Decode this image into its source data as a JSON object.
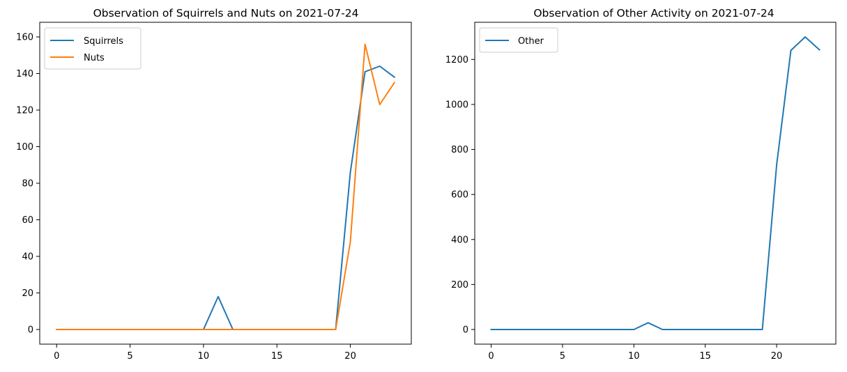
{
  "chart_data": [
    {
      "type": "line",
      "title": "Observation of Squirrels and Nuts on 2021-07-24",
      "xlabel": "",
      "ylabel": "",
      "xlim": [
        -1.15,
        24.15
      ],
      "ylim": [
        -8,
        168
      ],
      "xticks": [
        0,
        5,
        10,
        15,
        20
      ],
      "yticks": [
        0,
        20,
        40,
        60,
        80,
        100,
        120,
        140,
        160
      ],
      "grid": false,
      "legend_position": "upper-left",
      "x": [
        0,
        1,
        2,
        3,
        4,
        5,
        6,
        7,
        8,
        9,
        10,
        11,
        12,
        13,
        14,
        15,
        16,
        17,
        18,
        19,
        20,
        21,
        22,
        23
      ],
      "series": [
        {
          "name": "Squirrels",
          "color": "#1f77b4",
          "values": [
            0,
            0,
            0,
            0,
            0,
            0,
            0,
            0,
            0,
            0,
            0,
            18,
            0,
            0,
            0,
            0,
            0,
            0,
            0,
            0,
            86,
            141,
            144,
            138
          ]
        },
        {
          "name": "Nuts",
          "color": "#ff7f0e",
          "values": [
            0,
            0,
            0,
            0,
            0,
            0,
            0,
            0,
            0,
            0,
            0,
            0,
            0,
            0,
            0,
            0,
            0,
            0,
            0,
            0,
            48,
            156,
            123,
            135
          ]
        }
      ]
    },
    {
      "type": "line",
      "title": "Observation of Other Activity on 2021-07-24",
      "xlabel": "",
      "ylabel": "",
      "xlim": [
        -1.15,
        24.15
      ],
      "ylim": [
        -65,
        1365
      ],
      "xticks": [
        0,
        5,
        10,
        15,
        20
      ],
      "yticks": [
        0,
        200,
        400,
        600,
        800,
        1000,
        1200
      ],
      "grid": false,
      "legend_position": "upper-left",
      "x": [
        0,
        1,
        2,
        3,
        4,
        5,
        6,
        7,
        8,
        9,
        10,
        11,
        12,
        13,
        14,
        15,
        16,
        17,
        18,
        19,
        20,
        21,
        22,
        23
      ],
      "series": [
        {
          "name": "Other",
          "color": "#1f77b4",
          "values": [
            0,
            0,
            0,
            0,
            0,
            0,
            0,
            0,
            0,
            0,
            0,
            30,
            0,
            0,
            0,
            0,
            0,
            0,
            0,
            0,
            730,
            1240,
            1300,
            1243
          ]
        }
      ]
    }
  ]
}
